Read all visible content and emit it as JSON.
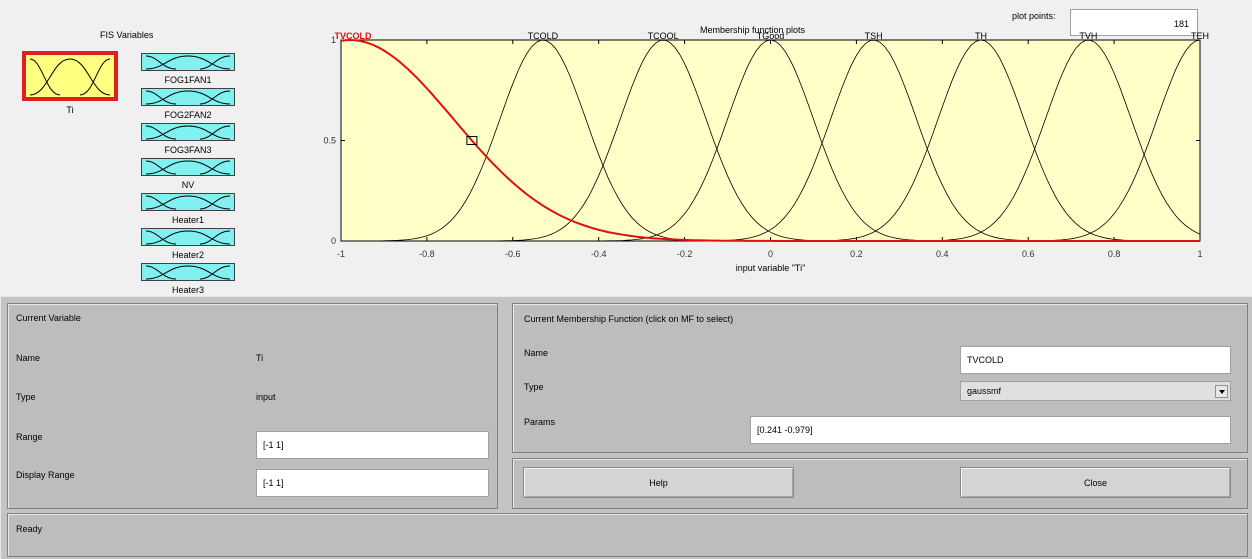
{
  "fis_variables": {
    "title": "FIS Variables",
    "selected": "Ti",
    "outputs": [
      "FOG1FAN1",
      "FOG2FAN2",
      "FOG3FAN3",
      "NV",
      "Heater1",
      "Heater2",
      "Heater3"
    ]
  },
  "plot_points": {
    "label": "plot points:",
    "value": "181"
  },
  "mf_plot": {
    "title": "Membership function plots",
    "xlabel": "input variable \"Ti\"",
    "selected_mf": "TVCOLD"
  },
  "chart_data": {
    "type": "line",
    "title": "Membership function plots",
    "xlabel": "input variable \"Ti\"",
    "ylabel": "",
    "xlim": [
      -1,
      1
    ],
    "ylim": [
      0,
      1
    ],
    "x_ticks": [
      "-1",
      "-0.8",
      "-0.6",
      "-0.4",
      "-0.2",
      "0",
      "0.2",
      "0.4",
      "0.6",
      "0.8",
      "1"
    ],
    "y_ticks": [
      "0",
      "0.5",
      "1"
    ],
    "series": [
      {
        "name": "TVCOLD",
        "mf": "gaussmf",
        "sigma": 0.241,
        "center": -0.979,
        "selected": true,
        "color": "#e01010"
      },
      {
        "name": "TCOLD",
        "mf": "gaussmf",
        "sigma": 0.1,
        "center": -0.53
      },
      {
        "name": "TCOOL",
        "mf": "gaussmf",
        "sigma": 0.1,
        "center": -0.25
      },
      {
        "name": "TGood",
        "mf": "gaussmf",
        "sigma": 0.1,
        "center": 0.0
      },
      {
        "name": "TSH",
        "mf": "gaussmf",
        "sigma": 0.1,
        "center": 0.24
      },
      {
        "name": "TH",
        "mf": "gaussmf",
        "sigma": 0.1,
        "center": 0.49
      },
      {
        "name": "TVH",
        "mf": "gaussmf",
        "sigma": 0.1,
        "center": 0.74
      },
      {
        "name": "TEH",
        "mf": "gaussmf",
        "sigma": 0.1,
        "center": 1.0
      }
    ],
    "grid": false,
    "background": "#ffffc8"
  },
  "current_variable": {
    "title": "Current Variable",
    "name_label": "Name",
    "name_value": "Ti",
    "type_label": "Type",
    "type_value": "input",
    "range_label": "Range",
    "range_value": "[-1 1]",
    "display_range_label": "Display Range",
    "display_range_value": "[-1 1]"
  },
  "current_mf": {
    "title": "Current Membership Function (click on MF to select)",
    "name_label": "Name",
    "name_value": "TVCOLD",
    "type_label": "Type",
    "type_value": "gaussmf",
    "params_label": "Params",
    "params_value": "[0.241 -0.979]"
  },
  "buttons": {
    "help": "Help",
    "close": "Close"
  },
  "status": "Ready"
}
